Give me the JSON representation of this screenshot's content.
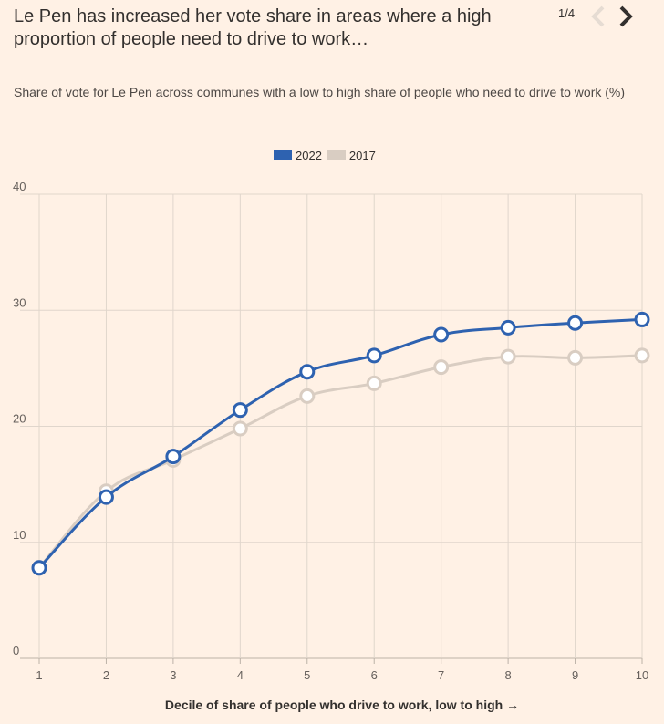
{
  "header": {
    "title": "Le Pen has increased her vote share in areas where a high proportion of people need to drive to work…",
    "page_indicator": "1/4",
    "subtitle": "Share of vote for Le Pen across communes with a low to high share of people who need to drive to work (%)"
  },
  "colors": {
    "background": "#fff1e5",
    "grid": "#e0d6cc",
    "series_2022": "#2e62b0",
    "series_2017": "#d9cdc2"
  },
  "chart_data": {
    "type": "line",
    "title": "Share of vote for Le Pen across communes with a low to high share of people who need to drive to work (%)",
    "xlabel": "Decile of share of people who drive to work, low to high →",
    "ylabel": "",
    "x": [
      1,
      2,
      3,
      4,
      5,
      6,
      7,
      8,
      9,
      10
    ],
    "xlim": [
      1,
      10
    ],
    "ylim": [
      0,
      40
    ],
    "yticks": [
      0,
      10,
      20,
      30,
      40
    ],
    "grid": true,
    "legend_position": "top-center",
    "series": [
      {
        "name": "2022",
        "color": "#2e62b0",
        "values": [
          7.8,
          13.9,
          17.4,
          21.4,
          24.7,
          26.1,
          27.9,
          28.5,
          28.9,
          29.2
        ]
      },
      {
        "name": "2017",
        "color": "#d9cdc2",
        "values": [
          7.8,
          14.4,
          17.1,
          19.8,
          22.6,
          23.7,
          25.1,
          26.0,
          25.9,
          26.1
        ]
      }
    ]
  }
}
